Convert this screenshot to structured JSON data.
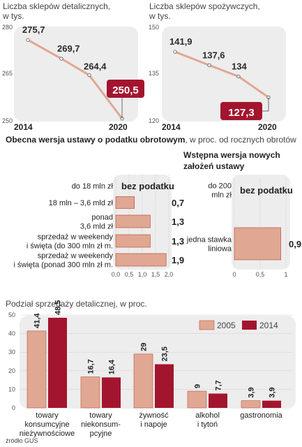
{
  "colors": {
    "salmon": "#e0a793",
    "salmon_border": "#b9553f",
    "crimson": "#a3152e",
    "panel": "#ededed"
  },
  "source": "źródło GUS",
  "chart_data": [
    {
      "type": "line",
      "title": "Liczba sklepów detalicznych,",
      "subtitle": "w tys.",
      "x": [
        "2014",
        "",
        "",
        "2020"
      ],
      "values": [
        275.7,
        269.7,
        264.4,
        250.5
      ],
      "labels": [
        "275,7",
        "269,7",
        "264,4",
        "250,5"
      ],
      "x_tick_labels": [
        "2014",
        "2020"
      ],
      "y_ticks": [
        "280",
        "265",
        "250"
      ],
      "ylim": [
        250,
        280
      ],
      "color": "#e0a793"
    },
    {
      "type": "line",
      "title": "Liczba sklepów spożywczych,",
      "subtitle": "w tys.",
      "x": [
        "2014",
        "",
        "",
        "2020"
      ],
      "values": [
        141.9,
        137.6,
        134,
        127.3
      ],
      "labels": [
        "141,9",
        "137,6",
        "134",
        "127,3"
      ],
      "x_tick_labels": [
        "2014",
        "2020"
      ],
      "y_ticks": [
        "150",
        "135",
        "120"
      ],
      "ylim": [
        120,
        150
      ],
      "color": "#e0a793"
    },
    {
      "type": "bar",
      "title": "Obecna wersja ustawy o podatku obrotowym",
      "subtitle": ", w proc. od rocznych obrotów",
      "categories": [
        [
          "do 18 mln zł"
        ],
        [
          "18 mln – 3,6 mld zł"
        ],
        [
          "ponad",
          "3,6 mld zł"
        ],
        [
          "sprzedaż w weekendy",
          "i święta (do 300 mln zł m."
        ],
        [
          "sprzedaż w weekendy",
          "i święta (ponad 300 mln zł m."
        ]
      ],
      "values": [
        0,
        0.7,
        1.3,
        1.3,
        1.9
      ],
      "labels": [
        "bez podatku",
        "0,7",
        "1,3",
        "1,3",
        "1,9"
      ],
      "x_ticks": [
        "0,0",
        "0,5",
        "1,0",
        "1,5",
        "2,0"
      ],
      "xlim": [
        0,
        2
      ]
    },
    {
      "type": "bar",
      "title": [
        "Wstępna wersja  nowych",
        "założeń ustawy"
      ],
      "categories": [
        [
          "do 200",
          "mln zł"
        ],
        [
          "jedna stawka",
          "liniowa"
        ]
      ],
      "values": [
        0,
        0.9
      ],
      "labels": [
        "bez podatku",
        "0,9"
      ],
      "x_ticks": [
        "0",
        "0,5",
        "1"
      ],
      "xlim": [
        0,
        1
      ]
    },
    {
      "type": "bar",
      "title": "Podział sprzedaży detalicznej, w proc.",
      "legend": [
        "2005",
        "2014"
      ],
      "categories": [
        [
          "towary",
          "konsumcyjne",
          "nieżywnościowe"
        ],
        [
          "towary",
          "niekonsum-",
          "pcyjne"
        ],
        [
          "żywność",
          "i napoje"
        ],
        [
          "alkohol",
          "i tytoń"
        ],
        [
          "gastronomia"
        ]
      ],
      "series": [
        {
          "name": "2005",
          "values": [
            41.4,
            16.7,
            29,
            9,
            3.9
          ],
          "labels": [
            "41,4",
            "16,7",
            "29",
            "9",
            "3,9"
          ]
        },
        {
          "name": "2014",
          "values": [
            48.5,
            16.4,
            23.5,
            7.7,
            3.9
          ],
          "labels": [
            "48,5",
            "16,4",
            "23,5",
            "7,7",
            "3,9"
          ]
        }
      ],
      "y_ticks": [
        "0",
        "10",
        "20",
        "30",
        "40",
        "50"
      ],
      "ylim": [
        0,
        50
      ]
    }
  ]
}
